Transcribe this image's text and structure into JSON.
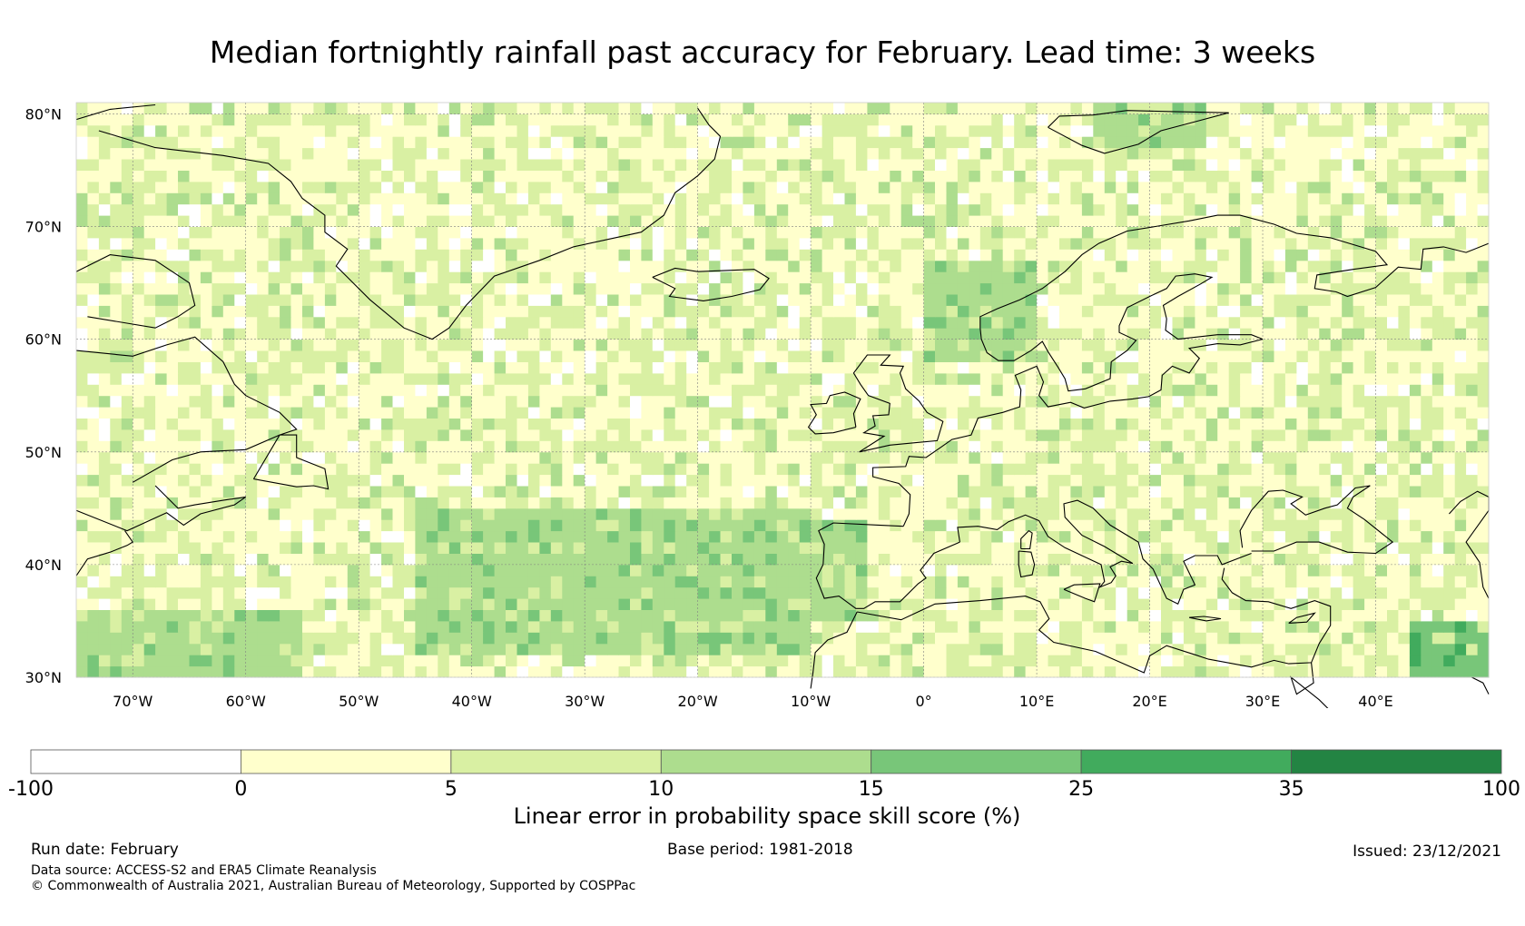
{
  "title": "Median fortnightly rainfall past accuracy for February. Lead time: 3 weeks",
  "map": {
    "extent": {
      "lon": [
        -75,
        50
      ],
      "lat": [
        30,
        81
      ]
    },
    "latitude_ticks": [
      {
        "value": 80,
        "label": "80°N"
      },
      {
        "value": 70,
        "label": "70°N"
      },
      {
        "value": 60,
        "label": "60°N"
      },
      {
        "value": 50,
        "label": "50°N"
      },
      {
        "value": 40,
        "label": "40°N"
      },
      {
        "value": 30,
        "label": "30°N"
      }
    ],
    "longitude_ticks": [
      {
        "value": -70,
        "label": "70°W"
      },
      {
        "value": -60,
        "label": "60°W"
      },
      {
        "value": -50,
        "label": "50°W"
      },
      {
        "value": -40,
        "label": "40°W"
      },
      {
        "value": -30,
        "label": "30°W"
      },
      {
        "value": -20,
        "label": "20°W"
      },
      {
        "value": -10,
        "label": "10°W"
      },
      {
        "value": 0,
        "label": "0°"
      },
      {
        "value": 10,
        "label": "10°E"
      },
      {
        "value": 20,
        "label": "20°E"
      },
      {
        "value": 30,
        "label": "30°E"
      },
      {
        "value": 40,
        "label": "40°E"
      }
    ],
    "gridlines": true,
    "field_description_regions": [
      {
        "name": "central-atlantic-band",
        "lon": [
          -45,
          -10
        ],
        "lat": [
          32,
          45
        ],
        "category": 3
      },
      {
        "name": "iberia-west",
        "lon": [
          -12,
          -5
        ],
        "lat": [
          35,
          44
        ],
        "category": 3
      },
      {
        "name": "norway-coast",
        "lon": [
          0,
          10
        ],
        "lat": [
          58,
          67
        ],
        "category": 3
      },
      {
        "name": "southwest-atlantic",
        "lon": [
          -75,
          -55
        ],
        "lat": [
          30,
          36
        ],
        "category": 3
      },
      {
        "name": "svalbard",
        "lon": [
          15,
          25
        ],
        "lat": [
          77,
          81
        ],
        "category": 3
      },
      {
        "name": "middle-east",
        "lon": [
          43,
          50
        ],
        "lat": [
          30,
          35
        ],
        "category": 4
      }
    ]
  },
  "colorbar": {
    "boundaries": [
      "-100",
      "0",
      "5",
      "10",
      "15",
      "25",
      "35",
      "100"
    ],
    "colors": [
      "#ffffff",
      "#ffffcc",
      "#d9f0a3",
      "#addd8e",
      "#78c679",
      "#41ab5d",
      "#238443"
    ],
    "label": "Linear error in probability space skill score (%)"
  },
  "footer": {
    "run_date": "Run date: February",
    "base_period": "Base period: 1981-2018",
    "issued": "Issued: 23/12/2021",
    "data_source": "Data source: ACCESS-S2 and ERA5 Climate Reanalysis",
    "copyright": "© Commonwealth of Australia 2021, Australian Bureau of Meteorology, Supported by COSPPac"
  }
}
